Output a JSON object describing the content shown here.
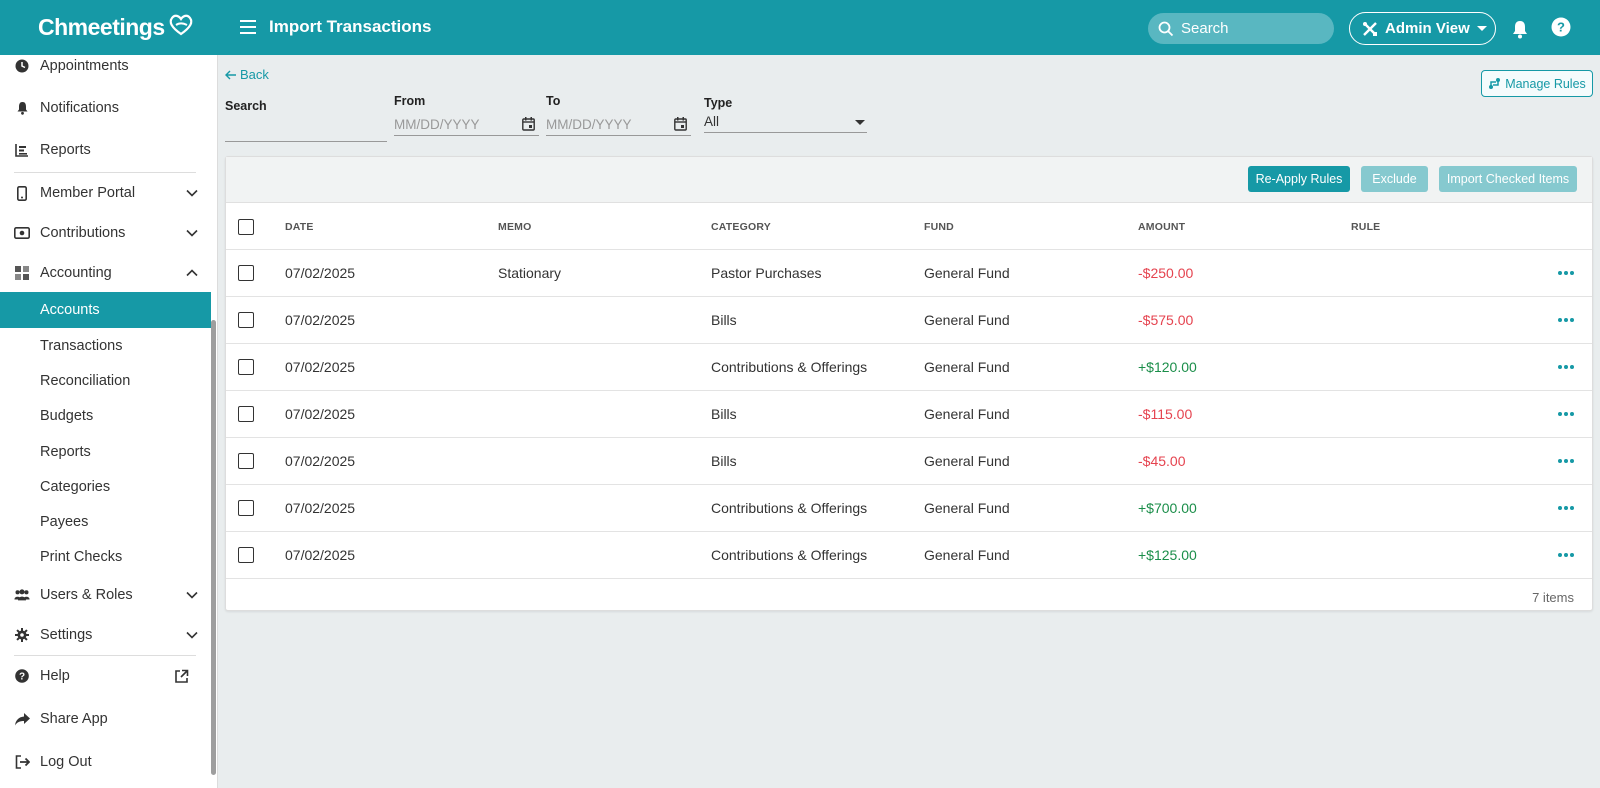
{
  "app": {
    "logo_text": "Chmeetings"
  },
  "header": {
    "title": "Import Transactions",
    "search_placeholder": "Search",
    "admin_view_label": "Admin View",
    "icons": [
      "menu-icon",
      "search-icon",
      "tools-icon",
      "bell-icon",
      "help-icon"
    ]
  },
  "sidebar": {
    "items": [
      {
        "label": "Appointments",
        "icon": "clock-icon"
      },
      {
        "label": "Notifications",
        "icon": "bell-icon"
      },
      {
        "label": "Reports",
        "icon": "bar-chart-icon"
      },
      {
        "label": "Member Portal",
        "icon": "phone-icon"
      },
      {
        "label": "Contributions",
        "icon": "money-icon"
      },
      {
        "label": "Accounting",
        "icon": "grid-icon"
      },
      {
        "label": "Users & Roles",
        "icon": "users-icon"
      },
      {
        "label": "Settings",
        "icon": "gear-icon"
      },
      {
        "label": "Help",
        "icon": "help-icon"
      },
      {
        "label": "Share App",
        "icon": "share-icon"
      },
      {
        "label": "Log Out",
        "icon": "logout-icon"
      }
    ],
    "accounting_sub": [
      "Accounts",
      "Transactions",
      "Reconciliation",
      "Budgets",
      "Reports",
      "Categories",
      "Payees",
      "Print Checks"
    ],
    "active_item": "Accounts"
  },
  "filters": {
    "back_label": "Back",
    "search_label": "Search",
    "search_value": "",
    "from_label": "From",
    "from_placeholder": "MM/DD/YYYY",
    "to_label": "To",
    "to_placeholder": "MM/DD/YYYY",
    "type_label": "Type",
    "type_value": "All",
    "manage_rules_label": "Manage Rules"
  },
  "toolbar": {
    "reapply_label": "Re-Apply Rules",
    "exclude_label": "Exclude",
    "import_label": "Import Checked Items"
  },
  "table": {
    "columns": [
      "DATE",
      "MEMO",
      "CATEGORY",
      "FUND",
      "AMOUNT",
      "RULE"
    ],
    "rows": [
      {
        "date": "07/02/2025",
        "memo": "Stationary",
        "category": "Pastor Purchases",
        "fund": "General Fund",
        "amount": "-$250.00",
        "rule": ""
      },
      {
        "date": "07/02/2025",
        "memo": "",
        "category": "Bills",
        "fund": "General Fund",
        "amount": "-$575.00",
        "rule": ""
      },
      {
        "date": "07/02/2025",
        "memo": "",
        "category": "Contributions & Offerings",
        "fund": "General Fund",
        "amount": "+$120.00",
        "rule": ""
      },
      {
        "date": "07/02/2025",
        "memo": "",
        "category": "Bills",
        "fund": "General Fund",
        "amount": "-$115.00",
        "rule": ""
      },
      {
        "date": "07/02/2025",
        "memo": "",
        "category": "Bills",
        "fund": "General Fund",
        "amount": "-$45.00",
        "rule": ""
      },
      {
        "date": "07/02/2025",
        "memo": "",
        "category": "Contributions & Offerings",
        "fund": "General Fund",
        "amount": "+$700.00",
        "rule": ""
      },
      {
        "date": "07/02/2025",
        "memo": "",
        "category": "Contributions & Offerings",
        "fund": "General Fund",
        "amount": "+$125.00",
        "rule": ""
      }
    ],
    "count_label": "7 items"
  },
  "colors": {
    "brand": "#1699a6",
    "negative": "#e5434f",
    "positive": "#1b8e4a"
  }
}
